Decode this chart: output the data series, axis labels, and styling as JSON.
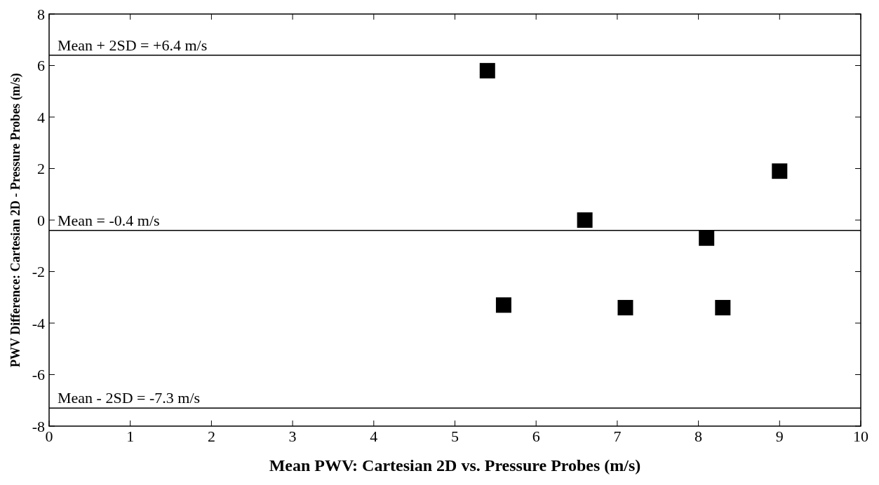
{
  "chart_data": {
    "type": "scatter",
    "xlabel": "Mean PWV: Cartesian 2D vs. Pressure Probes (m/s)",
    "ylabel": "PWV Difference: Cartesian 2D - Pressure Probes (m/s)",
    "x": [
      5.4,
      5.6,
      6.6,
      7.1,
      8.1,
      8.3,
      9.0
    ],
    "series": [
      {
        "color": "#000000",
        "values": [
          5.8,
          -3.3,
          0,
          -3.4,
          -0.7,
          -3.4,
          1.9
        ]
      }
    ],
    "marker": "square",
    "xlim": [
      0,
      10
    ],
    "xticks": [
      0,
      1,
      2,
      3,
      4,
      5,
      6,
      7,
      8,
      9,
      10
    ],
    "ylim": [
      -8,
      8
    ],
    "yticks": [
      -8,
      -6,
      -4,
      -2,
      0,
      2,
      4,
      6,
      8
    ],
    "ref_lines": [
      {
        "axis": "y",
        "value": 6.4,
        "label": "Mean + 2SD = +6.4 m/s",
        "color": "#000000"
      },
      {
        "axis": "y",
        "value": -0.4,
        "label": "Mean = -0.4 m/s",
        "color": "#000000"
      },
      {
        "axis": "y",
        "value": -7.3,
        "label": "Mean - 2SD = -7.3 m/s",
        "color": "#000000"
      }
    ]
  }
}
